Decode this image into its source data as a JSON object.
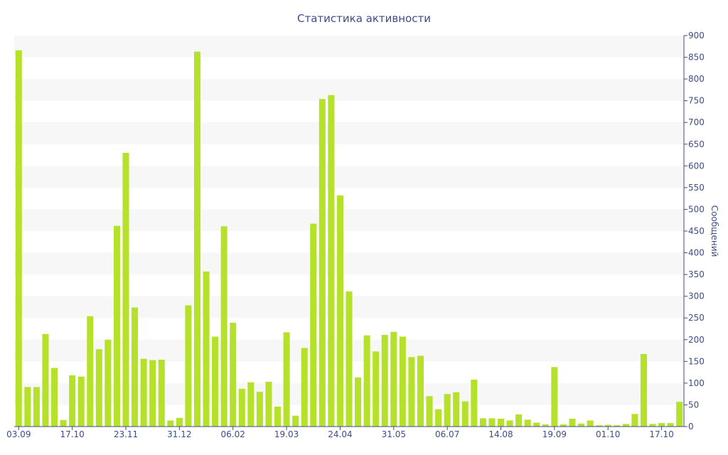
{
  "chart_data": {
    "type": "bar",
    "title": "Статистика активности",
    "xlabel": "",
    "ylabel": "Сообщений",
    "ylim": [
      0,
      900
    ],
    "ytick_step": 50,
    "grid": "alternating horizontal bands",
    "bar_color": "#b5e12a",
    "axis_color": "#3b4d8a",
    "x_tick_labels": [
      {
        "index": 0,
        "label": "03.09"
      },
      {
        "index": 6,
        "label": "17.10"
      },
      {
        "index": 12,
        "label": "23.11"
      },
      {
        "index": 18,
        "label": "31.12"
      },
      {
        "index": 24,
        "label": "06.02"
      },
      {
        "index": 30,
        "label": "19.03"
      },
      {
        "index": 36,
        "label": "24.04"
      },
      {
        "index": 42,
        "label": "31.05"
      },
      {
        "index": 48,
        "label": "06.07"
      },
      {
        "index": 54,
        "label": "14.08"
      },
      {
        "index": 60,
        "label": "19.09"
      },
      {
        "index": 66,
        "label": "01.10"
      },
      {
        "index": 72,
        "label": "17.10"
      }
    ],
    "values": [
      866,
      91,
      91,
      213,
      135,
      15,
      118,
      115,
      254,
      178,
      200,
      462,
      630,
      274,
      156,
      153,
      154,
      14,
      20,
      279,
      863,
      357,
      207,
      461,
      239,
      87,
      102,
      80,
      103,
      46,
      217,
      25,
      181,
      467,
      754,
      763,
      532,
      311,
      113,
      210,
      173,
      211,
      218,
      207,
      160,
      163,
      70,
      40,
      75,
      79,
      58,
      108,
      19,
      19,
      18,
      14,
      28,
      16,
      9,
      5,
      137,
      5,
      18,
      7,
      14,
      3,
      4,
      3,
      6,
      29,
      167,
      6,
      8,
      8,
      57
    ]
  }
}
